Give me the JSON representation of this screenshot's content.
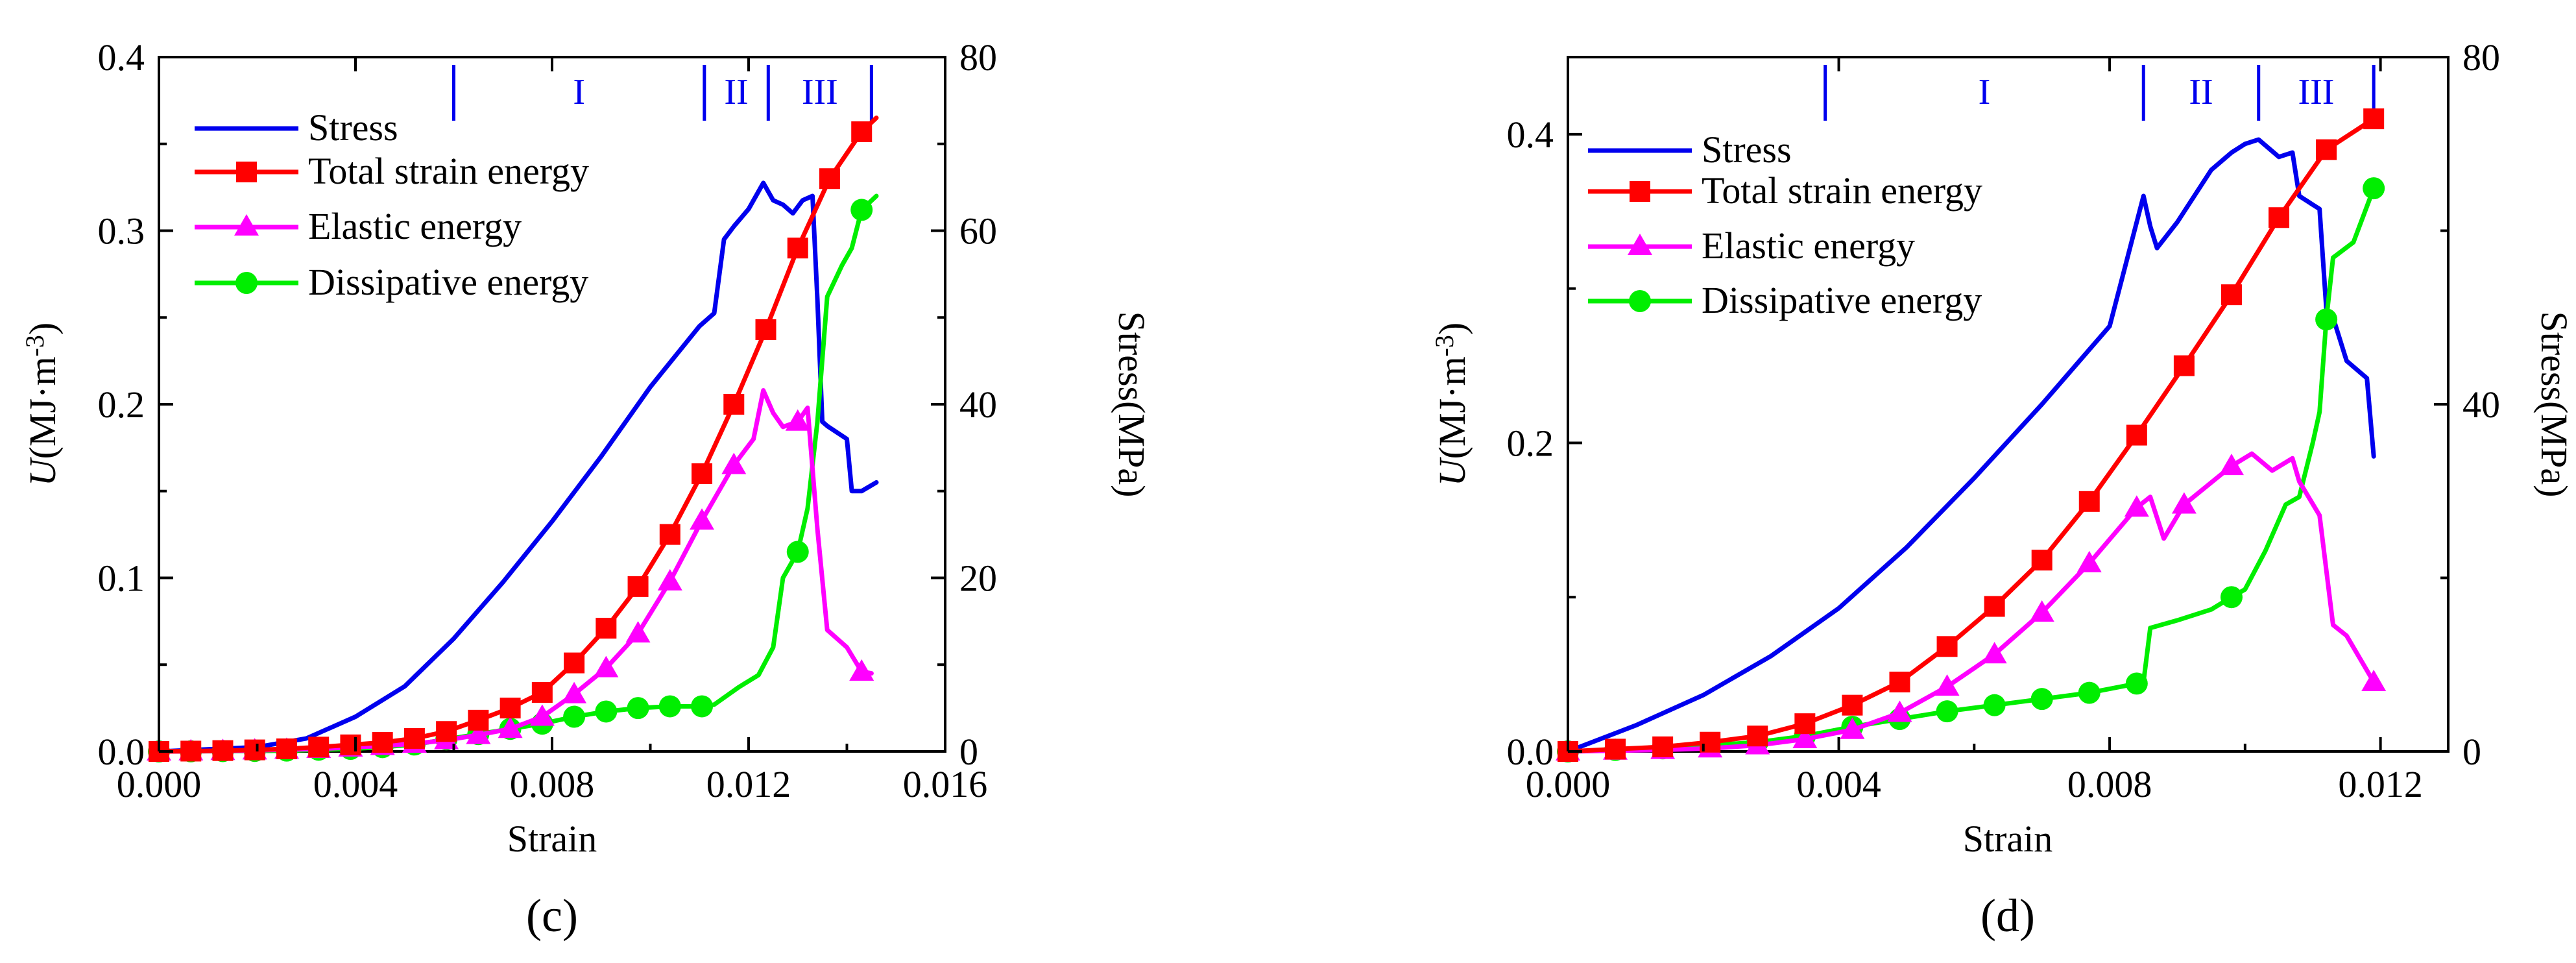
{
  "colors": {
    "stress": "#0000ee",
    "total": "#ff0000",
    "elastic": "#ff00ff",
    "dissipative": "#00ee00",
    "stage": "#0000ee",
    "axis": "#000000"
  },
  "icons": {
    "square": "square-marker-icon",
    "triangle": "triangle-marker-icon",
    "circle": "circle-marker-icon"
  },
  "chart_data": [
    {
      "type": "line",
      "panel_label": "(c)",
      "xlabel": "Strain",
      "ylabel_italic": "U",
      "ylabel_rest": "(MJ·m",
      "ylabel_sup": "-3",
      "ylabel_close": ")",
      "y2label": "Stress(MPa)",
      "xlim": [
        0,
        0.016
      ],
      "ylim": [
        0,
        0.4
      ],
      "y2lim": [
        0,
        80
      ],
      "xticks": [
        "0.000",
        "0.004",
        "0.008",
        "0.012",
        "0.016"
      ],
      "yticks": [
        "0.0",
        "0.1",
        "0.2",
        "0.3",
        "0.4"
      ],
      "y2ticks": [
        "0",
        "20",
        "40",
        "60",
        "80"
      ],
      "legend": [
        "Stress",
        "Total strain energy",
        "Elastic energy",
        "Dissipative energy"
      ],
      "stages": {
        "boundaries": [
          0.006,
          0.0111,
          0.0124,
          0.0145
        ],
        "labels": [
          "I",
          "II",
          "III"
        ]
      },
      "series": [
        {
          "name": "Stress",
          "axis": "y2",
          "marker": "none",
          "x": [
            0,
            0.002,
            0.003,
            0.004,
            0.005,
            0.006,
            0.007,
            0.008,
            0.009,
            0.01,
            0.011,
            0.0113,
            0.0115,
            0.0117,
            0.012,
            0.0123,
            0.0125,
            0.0127,
            0.0129,
            0.0131,
            0.0133,
            0.0134,
            0.0135,
            0.0136,
            0.014,
            0.0141,
            0.0143,
            0.0146
          ],
          "values": [
            0,
            0.5,
            1.5,
            4,
            7.5,
            13,
            19.5,
            26.5,
            34,
            42,
            49,
            50.5,
            59,
            60.5,
            62.5,
            65.5,
            63.5,
            63,
            62,
            63.5,
            64,
            52,
            38,
            37.5,
            36,
            30,
            30,
            31
          ]
        },
        {
          "name": "Total strain energy",
          "axis": "y",
          "marker": "square",
          "x": [
            0,
            0.00065,
            0.0013,
            0.00195,
            0.0026,
            0.00325,
            0.0039,
            0.00455,
            0.0052,
            0.00585,
            0.0065,
            0.00715,
            0.0078,
            0.00845,
            0.0091,
            0.00975,
            0.0104,
            0.01105,
            0.0117,
            0.01235,
            0.013,
            0.01365,
            0.0143,
            0.0146
          ],
          "values": [
            0,
            0.0002,
            0.0005,
            0.0009,
            0.0015,
            0.0025,
            0.0038,
            0.0052,
            0.0075,
            0.0115,
            0.018,
            0.025,
            0.034,
            0.051,
            0.071,
            0.095,
            0.125,
            0.16,
            0.2,
            0.243,
            0.29,
            0.33,
            0.357,
            0.365
          ]
        },
        {
          "name": "Elastic energy",
          "axis": "y",
          "marker": "triangle",
          "x": [
            0,
            0.00065,
            0.0013,
            0.00195,
            0.0026,
            0.00325,
            0.0039,
            0.00455,
            0.0052,
            0.00585,
            0.0065,
            0.00715,
            0.0078,
            0.00845,
            0.0091,
            0.00975,
            0.0104,
            0.01105,
            0.0117,
            0.0121,
            0.0123,
            0.0125,
            0.0127,
            0.013,
            0.0132,
            0.0134,
            0.0136,
            0.014,
            0.0143,
            0.0145
          ],
          "values": [
            0,
            0.0001,
            0.0003,
            0.0006,
            0.001,
            0.0015,
            0.0023,
            0.0032,
            0.0045,
            0.0065,
            0.0095,
            0.013,
            0.02,
            0.033,
            0.048,
            0.068,
            0.098,
            0.133,
            0.165,
            0.18,
            0.208,
            0.195,
            0.187,
            0.19,
            0.198,
            0.128,
            0.07,
            0.06,
            0.046,
            0.045
          ]
        },
        {
          "name": "Dissipative energy",
          "axis": "y",
          "marker": "circle",
          "x": [
            0,
            0.00065,
            0.0013,
            0.00195,
            0.0026,
            0.00325,
            0.0039,
            0.00455,
            0.0052,
            0.00585,
            0.0065,
            0.00715,
            0.0078,
            0.00845,
            0.0091,
            0.00975,
            0.0104,
            0.01105,
            0.0113,
            0.0118,
            0.0122,
            0.0125,
            0.0127,
            0.013,
            0.0132,
            0.0134,
            0.0136,
            0.0139,
            0.0141,
            0.0143,
            0.0146
          ],
          "values": [
            0,
            0.0001,
            0.0002,
            0.0003,
            0.0005,
            0.001,
            0.0015,
            0.0025,
            0.004,
            0.007,
            0.01,
            0.013,
            0.016,
            0.02,
            0.023,
            0.025,
            0.026,
            0.026,
            0.027,
            0.037,
            0.044,
            0.06,
            0.1,
            0.115,
            0.14,
            0.19,
            0.262,
            0.28,
            0.29,
            0.312,
            0.32
          ]
        }
      ]
    },
    {
      "type": "line",
      "panel_label": "(d)",
      "xlabel": "Strain",
      "ylabel_italic": "U",
      "ylabel_rest": "(MJ·m",
      "ylabel_sup": "-3",
      "ylabel_close": ")",
      "y2label": "Stress(MPa)",
      "xlim": [
        0,
        0.013
      ],
      "ylim": [
        0,
        0.45
      ],
      "y2lim": [
        0,
        80
      ],
      "xticks": [
        "0.000",
        "0.004",
        "0.008",
        "0.012"
      ],
      "xtick_values": [
        0,
        0.004,
        0.008,
        0.012
      ],
      "yticks": [
        "0.0",
        "0.2",
        "0.4"
      ],
      "ytick_values": [
        0,
        0.2,
        0.4
      ],
      "y2ticks": [
        "0",
        "40",
        "80"
      ],
      "y2tick_values": [
        0,
        40,
        80
      ],
      "legend": [
        "Stress",
        "Total strain energy",
        "Elastic energy",
        "Dissipative energy"
      ],
      "stages": {
        "boundaries": [
          0.0038,
          0.0085,
          0.0102,
          0.0119
        ],
        "labels": [
          "I",
          "II",
          "III"
        ]
      },
      "series": [
        {
          "name": "Stress",
          "axis": "y2",
          "marker": "none",
          "x": [
            0,
            0.001,
            0.002,
            0.003,
            0.004,
            0.005,
            0.006,
            0.007,
            0.008,
            0.0085,
            0.0086,
            0.0087,
            0.009,
            0.0095,
            0.0098,
            0.01,
            0.0102,
            0.0105,
            0.0107,
            0.0108,
            0.011,
            0.0111,
            0.0112,
            0.0113,
            0.0115,
            0.0118,
            0.0119
          ],
          "values": [
            0,
            3,
            6.5,
            11,
            16.5,
            23.5,
            31.5,
            40,
            49,
            64,
            60.5,
            58,
            61,
            67,
            69,
            70,
            70.5,
            68.5,
            69,
            64,
            63,
            62.5,
            51,
            50,
            45,
            43,
            34
          ]
        },
        {
          "name": "Total strain energy",
          "axis": "y",
          "marker": "square",
          "x": [
            0,
            0.0007,
            0.0014,
            0.0021,
            0.0028,
            0.0035,
            0.0042,
            0.0049,
            0.0056,
            0.0063,
            0.007,
            0.0077,
            0.0084,
            0.0091,
            0.0098,
            0.0105,
            0.0112,
            0.0119
          ],
          "values": [
            0,
            0.0015,
            0.003,
            0.006,
            0.01,
            0.018,
            0.03,
            0.045,
            0.068,
            0.094,
            0.124,
            0.162,
            0.205,
            0.25,
            0.296,
            0.346,
            0.39,
            0.41
          ]
        },
        {
          "name": "Elastic energy",
          "axis": "y",
          "marker": "triangle",
          "x": [
            0,
            0.0007,
            0.0014,
            0.0021,
            0.0028,
            0.0035,
            0.0042,
            0.0049,
            0.0056,
            0.0063,
            0.007,
            0.0077,
            0.0084,
            0.0086,
            0.0088,
            0.0091,
            0.0098,
            0.0101,
            0.0104,
            0.0107,
            0.0108,
            0.0111,
            0.0113,
            0.0115,
            0.0119
          ],
          "values": [
            0,
            0.0005,
            0.001,
            0.002,
            0.004,
            0.008,
            0.014,
            0.025,
            0.042,
            0.063,
            0.09,
            0.122,
            0.158,
            0.165,
            0.138,
            0.16,
            0.185,
            0.193,
            0.182,
            0.19,
            0.175,
            0.153,
            0.082,
            0.075,
            0.045
          ]
        },
        {
          "name": "Dissipative energy",
          "axis": "y",
          "marker": "circle",
          "x": [
            0,
            0.0007,
            0.0014,
            0.0021,
            0.0028,
            0.0035,
            0.0042,
            0.0049,
            0.0056,
            0.0063,
            0.007,
            0.0077,
            0.0084,
            0.0085,
            0.0086,
            0.009,
            0.0095,
            0.0098,
            0.01,
            0.0103,
            0.0106,
            0.0108,
            0.011,
            0.0111,
            0.0112,
            0.0113,
            0.0116,
            0.0119
          ],
          "values": [
            0,
            0.001,
            0.002,
            0.004,
            0.006,
            0.01,
            0.016,
            0.021,
            0.026,
            0.03,
            0.034,
            0.038,
            0.044,
            0.045,
            0.08,
            0.085,
            0.092,
            0.1,
            0.105,
            0.13,
            0.16,
            0.165,
            0.2,
            0.22,
            0.28,
            0.32,
            0.33,
            0.365
          ]
        }
      ]
    }
  ]
}
